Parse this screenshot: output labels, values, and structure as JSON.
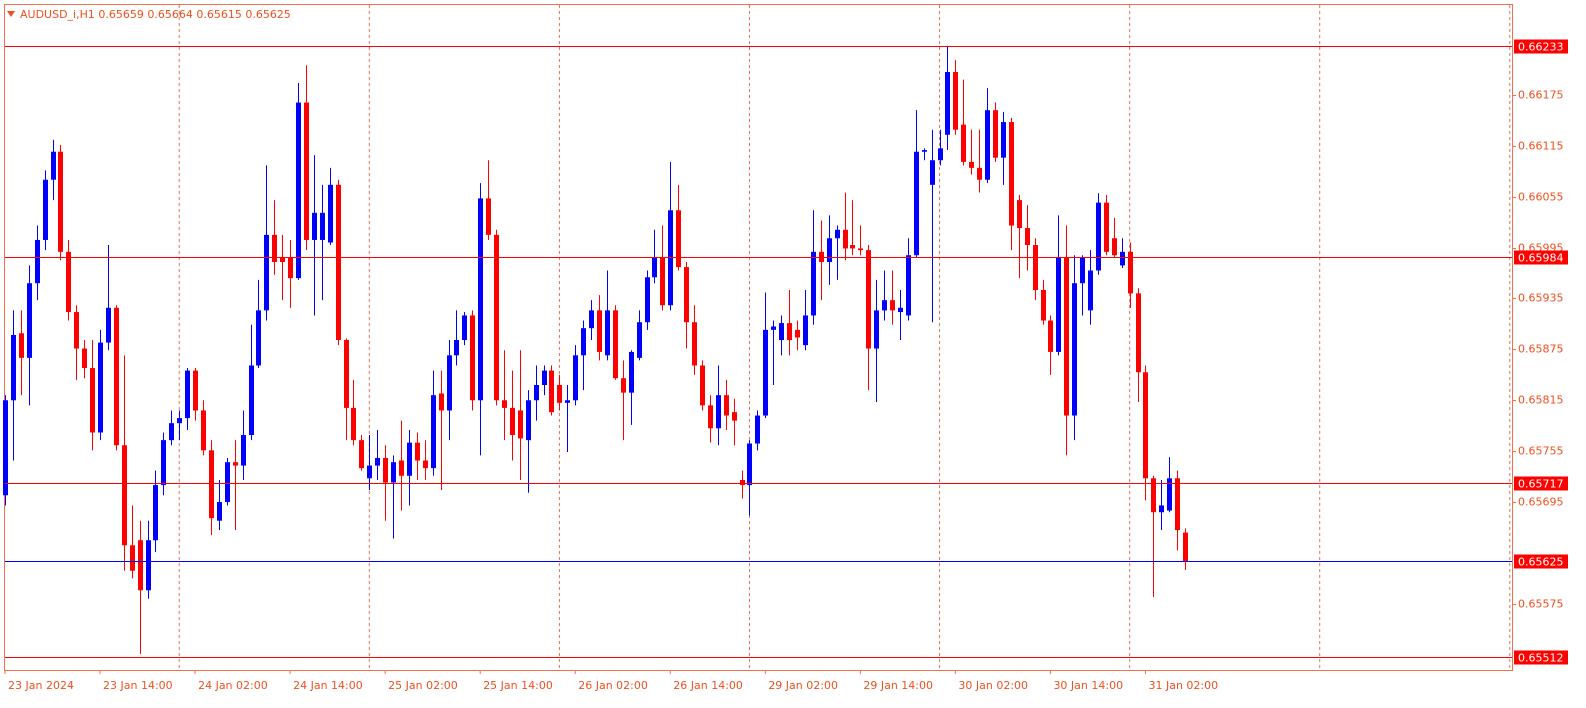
{
  "chart_data": {
    "type": "candlestick",
    "title": "AUDUSD_i,H1  0.65659 0.65664 0.65615 0.65625",
    "categories": [
      "23 Jan 2024",
      null,
      null,
      null,
      null,
      null,
      null,
      null,
      null,
      null,
      null,
      null,
      "23 Jan 14:00",
      null,
      null,
      null,
      null,
      null,
      null,
      null,
      null,
      null,
      null,
      null,
      "24 Jan 02:00",
      null,
      null,
      null,
      null,
      null,
      null,
      null,
      null,
      null,
      null,
      null,
      "24 Jan 14:00",
      null,
      null,
      null,
      null,
      null,
      null,
      null,
      null,
      null,
      null,
      null,
      "25 Jan 02:00",
      null,
      null,
      null,
      null,
      null,
      null,
      null,
      null,
      null,
      null,
      null,
      "25 Jan 14:00",
      null,
      null,
      null,
      null,
      null,
      null,
      null,
      null,
      null,
      null,
      null,
      "26 Jan 02:00",
      null,
      null,
      null,
      null,
      null,
      null,
      null,
      null,
      null,
      null,
      null,
      "26 Jan 14:00",
      null,
      null,
      null,
      null,
      null,
      null,
      null,
      null,
      null,
      null,
      null,
      "29 Jan 02:00",
      null,
      null,
      null,
      null,
      null,
      null,
      null,
      null,
      null,
      null,
      null,
      "29 Jan 14:00",
      null,
      null,
      null,
      null,
      null,
      null,
      null,
      null,
      null,
      null,
      null,
      "30 Jan 02:00",
      null,
      null,
      null,
      null,
      null,
      null,
      null,
      null,
      null,
      null,
      null,
      "30 Jan 14:00",
      null,
      null,
      null,
      null,
      null,
      null,
      null,
      null,
      null,
      null,
      null,
      "31 Jan 02:00",
      null,
      null,
      null,
      null,
      null
    ],
    "open": [
      0.65703,
      0.65815,
      0.65894,
      0.65865,
      0.65953,
      0.66004,
      0.66075,
      0.66108,
      0.6599,
      0.65919,
      0.65876,
      0.65853,
      0.65777,
      0.65883,
      0.65924,
      0.65762,
      0.65644,
      0.6565,
      0.65591,
      0.6565,
      0.65715,
      0.65768,
      0.65788,
      0.65794,
      0.6585,
      0.65803,
      0.65756,
      0.65673,
      0.65695,
      0.65742,
      0.65738,
      0.65774,
      0.65856,
      0.65921,
      0.6601,
      0.65983,
      0.65983,
      0.65959,
      0.66166,
      0.66004,
      0.66004,
      0.66001,
      0.66069,
      0.65886,
      0.65806,
      0.65768,
      0.65723,
      0.65738,
      0.65747,
      0.65718,
      0.65744,
      0.65726,
      0.65765,
      0.65744,
      0.65735,
      0.65823,
      0.65803,
      0.65868,
      0.65886,
      0.65915,
      0.65815,
      0.66053,
      0.6601,
      0.65815,
      0.65806,
      0.65803,
      0.65768,
      0.65815,
      0.65833,
      0.6585,
      0.65833,
      0.65812,
      0.65815,
      0.65868,
      0.659,
      0.65921,
      0.65868,
      0.65921,
      0.65841,
      0.65824,
      0.65865,
      0.65907,
      0.6596,
      0.65983,
      0.65927,
      0.66039,
      0.65972,
      0.65907,
      0.65856,
      0.65809,
      0.65782,
      0.65821,
      0.65801,
      0.65721,
      0.65715,
      0.65764,
      0.65797,
      0.65898,
      0.65886,
      0.65906,
      0.65898,
      0.6588,
      0.65915,
      0.6599,
      0.65978,
      0.66006,
      0.66016,
      0.65998,
      0.65994,
      0.65992,
      0.65876,
      0.65921,
      0.65933,
      0.65919,
      0.65915,
      0.65986,
      0.66108,
      0.66069,
      0.66098,
      0.66128,
      0.66202,
      0.6614,
      0.66096,
      0.66089,
      0.66075,
      0.66157,
      0.66101,
      0.66143,
      0.66051,
      0.66018,
      0.65998,
      0.65945,
      0.65909,
      0.65872,
      0.65983,
      0.65797,
      0.65953,
      0.65921,
      0.65968,
      0.66048,
      0.66006,
      0.65974,
      0.6599,
      0.65941,
      0.65848,
      0.65723,
      0.65683,
      0.65685,
      0.65723,
      0.65659
    ],
    "high": [
      0.65821,
      0.65921,
      0.65921,
      0.65974,
      0.66021,
      0.66086,
      0.66122,
      0.66116,
      0.66004,
      0.65927,
      0.65886,
      0.65886,
      0.65898,
      0.65998,
      0.65927,
      0.65868,
      0.65691,
      0.65673,
      0.65673,
      0.65732,
      0.65777,
      0.65803,
      0.65803,
      0.65853,
      0.65853,
      0.65815,
      0.65768,
      0.65721,
      0.65747,
      0.65768,
      0.65803,
      0.65904,
      0.65957,
      0.66092,
      0.66051,
      0.6601,
      0.66004,
      0.66189,
      0.6621,
      0.66104,
      0.66069,
      0.66089,
      0.66075,
      0.65888,
      0.65839,
      0.65774,
      0.65774,
      0.6578,
      0.65762,
      0.6575,
      0.65791,
      0.6578,
      0.65777,
      0.65768,
      0.6585,
      0.6585,
      0.65886,
      0.65921,
      0.65919,
      0.65921,
      0.66071,
      0.66098,
      0.66016,
      0.65874,
      0.6585,
      0.65874,
      0.65827,
      0.65856,
      0.65856,
      0.65856,
      0.65845,
      0.65833,
      0.6588,
      0.65909,
      0.65933,
      0.65939,
      0.65968,
      0.65927,
      0.65862,
      0.65874,
      0.65921,
      0.65968,
      0.66016,
      0.66021,
      0.66096,
      0.66069,
      0.65978,
      0.65927,
      0.65862,
      0.65821,
      0.65856,
      0.65839,
      0.65817,
      0.65732,
      0.65768,
      0.65803,
      0.65942,
      0.65909,
      0.65915,
      0.65945,
      0.65909,
      0.65945,
      0.66039,
      0.66027,
      0.66033,
      0.66021,
      0.6606,
      0.66051,
      0.66021,
      0.65998,
      0.65957,
      0.65968,
      0.65968,
      0.65945,
      0.66006,
      0.66157,
      0.66112,
      0.66134,
      0.66134,
      0.66233,
      0.66216,
      0.66193,
      0.66134,
      0.66134,
      0.66183,
      0.66166,
      0.66155,
      0.66148,
      0.66057,
      0.66045,
      0.66006,
      0.65957,
      0.65915,
      0.66033,
      0.66021,
      0.65986,
      0.65986,
      0.65992,
      0.66059,
      0.66057,
      0.6603,
      0.66006,
      0.66001,
      0.65947,
      0.65856,
      0.65726,
      0.65721,
      0.65748,
      0.65732,
      0.65664
    ],
    "low": [
      0.65691,
      0.65744,
      0.65821,
      0.65809,
      0.65933,
      0.65992,
      0.66051,
      0.6598,
      0.65909,
      0.65839,
      0.65841,
      0.65756,
      0.65768,
      0.65874,
      0.65756,
      0.65614,
      0.65605,
      0.65516,
      0.65581,
      0.65636,
      0.65703,
      0.65762,
      0.65768,
      0.6578,
      0.65791,
      0.6575,
      0.65656,
      0.65662,
      0.65691,
      0.65662,
      0.65721,
      0.65768,
      0.65853,
      0.65909,
      0.65963,
      0.65933,
      0.65924,
      0.65957,
      0.65992,
      0.65915,
      0.65933,
      0.65998,
      0.6588,
      0.65768,
      0.65762,
      0.65732,
      0.65709,
      0.65721,
      0.65673,
      0.65652,
      0.65685,
      0.65691,
      0.65721,
      0.65721,
      0.65726,
      0.65709,
      0.65768,
      0.65856,
      0.6588,
      0.65803,
      0.6575,
      0.66004,
      0.65809,
      0.65768,
      0.65744,
      0.65721,
      0.65706,
      0.65791,
      0.65821,
      0.65797,
      0.65803,
      0.65754,
      0.65809,
      0.65827,
      0.65886,
      0.65862,
      0.65862,
      0.65839,
      0.65768,
      0.65786,
      0.65862,
      0.65898,
      0.65953,
      0.65921,
      0.65921,
      0.65968,
      0.65876,
      0.65845,
      0.65803,
      0.65765,
      0.65762,
      0.6578,
      0.65762,
      0.65699,
      0.65679,
      0.65756,
      0.65794,
      0.65833,
      0.65868,
      0.65868,
      0.65874,
      0.65874,
      0.65904,
      0.65933,
      0.65951,
      0.65957,
      0.6598,
      0.65986,
      0.65986,
      0.65827,
      0.65813,
      0.65909,
      0.65904,
      0.65886,
      0.65909,
      0.65983,
      0.66098,
      0.65907,
      0.66092,
      0.6611,
      0.66128,
      0.66092,
      0.66081,
      0.6606,
      0.66071,
      0.66096,
      0.66069,
      0.65992,
      0.65959,
      0.65968,
      0.65933,
      0.65904,
      0.65845,
      0.65868,
      0.6575,
      0.65768,
      0.65915,
      0.65904,
      0.65963,
      0.65986,
      0.65983,
      0.65971,
      0.65924,
      0.65813,
      0.65697,
      0.65583,
      0.65662,
      0.65683,
      0.65638,
      0.65615
    ],
    "close": [
      0.65815,
      0.65892,
      0.65865,
      0.65953,
      0.66004,
      0.66075,
      0.66108,
      0.6599,
      0.65919,
      0.65876,
      0.65853,
      0.65777,
      0.65883,
      0.65924,
      0.65762,
      0.65644,
      0.65614,
      0.65591,
      0.6565,
      0.65715,
      0.65768,
      0.65788,
      0.65794,
      0.6585,
      0.65803,
      0.65756,
      0.65676,
      0.65695,
      0.65742,
      0.65738,
      0.65774,
      0.65856,
      0.65921,
      0.6601,
      0.65978,
      0.65978,
      0.65959,
      0.66166,
      0.66004,
      0.66036,
      0.66036,
      0.66069,
      0.65886,
      0.65806,
      0.65768,
      0.65735,
      0.65738,
      0.65747,
      0.65718,
      0.65742,
      0.65726,
      0.65765,
      0.65744,
      0.65735,
      0.65821,
      0.65803,
      0.65868,
      0.65886,
      0.65915,
      0.65815,
      0.66053,
      0.6601,
      0.65815,
      0.65806,
      0.65774,
      0.6577,
      0.65815,
      0.65833,
      0.6585,
      0.65801,
      0.65812,
      0.65815,
      0.65868,
      0.659,
      0.65921,
      0.65872,
      0.65921,
      0.65841,
      0.65824,
      0.65872,
      0.65907,
      0.6596,
      0.65983,
      0.65927,
      0.66039,
      0.65972,
      0.65907,
      0.65856,
      0.65809,
      0.65782,
      0.65821,
      0.65797,
      0.65791,
      0.65715,
      0.65764,
      0.65797,
      0.65898,
      0.65902,
      0.65906,
      0.65886,
      0.65889,
      0.65915,
      0.6599,
      0.65978,
      0.66006,
      0.66016,
      0.65994,
      0.65994,
      0.65992,
      0.65876,
      0.65921,
      0.65933,
      0.65921,
      0.65924,
      0.65986,
      0.66108,
      0.6611,
      0.66098,
      0.66112,
      0.66202,
      0.66134,
      0.66096,
      0.66089,
      0.66075,
      0.66157,
      0.66101,
      0.66143,
      0.66021,
      0.66018,
      0.65998,
      0.65945,
      0.65909,
      0.65872,
      0.65983,
      0.65797,
      0.65953,
      0.65983,
      0.65968,
      0.66048,
      0.6599,
      0.65986,
      0.6599,
      0.65941,
      0.65848,
      0.65723,
      0.65683,
      0.65691,
      0.65723,
      0.65662,
      0.65625
    ],
    "up_color": "#0000ff",
    "down_color": "#ff0000",
    "ylim": [
      0.65497,
      0.66281
    ],
    "yticks": [
      0.66175,
      0.66115,
      0.66055,
      0.65995,
      0.65935,
      0.65875,
      0.65815,
      0.65755,
      0.65695,
      0.65575
    ],
    "levels": [
      {
        "value": 0.66233,
        "color": "#ff0000"
      },
      {
        "value": 0.65984,
        "color": "#ff0000"
      },
      {
        "value": 0.65717,
        "color": "#ff0000"
      },
      {
        "value": 0.65625,
        "color": "#0000ff"
      },
      {
        "value": 0.65512,
        "color": "#ff0000"
      }
    ]
  }
}
